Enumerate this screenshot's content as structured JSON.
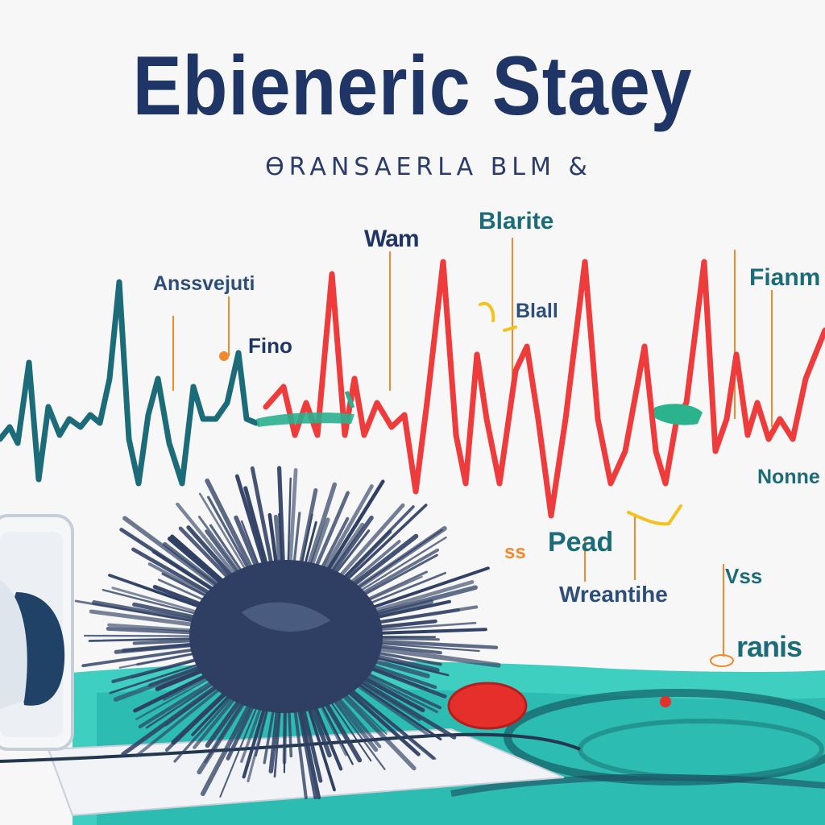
{
  "header": {
    "title": "Ebieneric Staey",
    "subtitle": "ƟRANSAERLA BLM &"
  },
  "annotations": [
    {
      "id": "wam",
      "text": "Wam"
    },
    {
      "id": "blarite",
      "text": "Blarite"
    },
    {
      "id": "anssvejuti",
      "text": "Anssvejuti"
    },
    {
      "id": "fianm",
      "text": "Fianm"
    },
    {
      "id": "fino",
      "text": "Fino"
    },
    {
      "id": "blall",
      "text": "Blall"
    },
    {
      "id": "nonne",
      "text": "Nonne"
    },
    {
      "id": "pead",
      "text": "Pead"
    },
    {
      "id": "ss",
      "text": "ss"
    },
    {
      "id": "wreantihe",
      "text": "Wreantihe"
    },
    {
      "id": "vss",
      "text": "Vss"
    },
    {
      "id": "ranis",
      "text": "ranis"
    }
  ],
  "colors": {
    "title_navy": "#1f3566",
    "ecg_teal": "#1c6b78",
    "ecg_red": "#ee3b3b",
    "pool_teal": "#2ec5b8",
    "orange_leader": "#f08a2c",
    "urchin_navy": "#2e3f63"
  }
}
